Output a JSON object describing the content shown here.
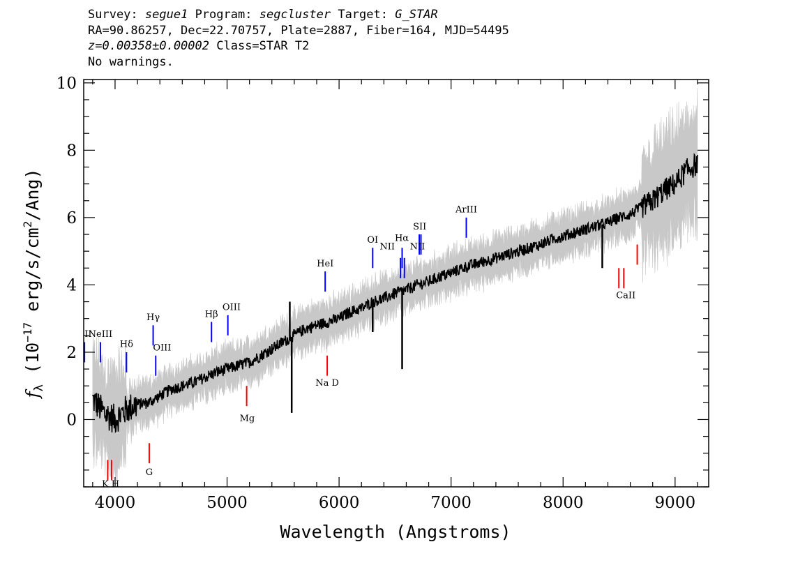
{
  "header": {
    "survey_label": "Survey:",
    "survey": "segue1",
    "program_label": "Program:",
    "program": "segcluster",
    "target_label": "Target:",
    "target": "G_STAR",
    "line2": "RA=90.86257, Dec=22.70757, Plate=2887, Fiber=164, MJD=54495",
    "redshift": "z=0.00358±0.00002",
    "class": "Class=STAR T2",
    "warnings": "No warnings."
  },
  "colors": {
    "flux": "#000000",
    "error": "#c8c8c8",
    "emission": "#0000ff",
    "absorption": "#ff0000",
    "sky": "#000000"
  },
  "chart_data": {
    "type": "line",
    "xlabel": "Wavelength (Angstroms)",
    "ylabel_parts": [
      "f",
      "λ",
      " (10",
      "−17",
      " erg/s/cm",
      "2",
      "/Ang)"
    ],
    "xlim": [
      3720,
      9300
    ],
    "ylim": [
      -2,
      10.1
    ],
    "x_ticks": [
      4000,
      5000,
      6000,
      7000,
      8000,
      9000
    ],
    "x_tick_labels": [
      "4000",
      "5000",
      "6000",
      "7000",
      "8000",
      "9000"
    ],
    "x_minor_step": 200,
    "y_ticks": [
      0,
      2,
      4,
      6,
      8,
      10
    ],
    "y_tick_labels": [
      "0",
      "2",
      "4",
      "6",
      "8",
      "10"
    ],
    "y_minor_step": 0.5,
    "series": [
      {
        "name": "flux",
        "x": [
          3800,
          3900,
          4000,
          4100,
          4200,
          4300,
          4400,
          4500,
          4600,
          4700,
          4800,
          4900,
          5000,
          5100,
          5200,
          5300,
          5400,
          5500,
          5600,
          5700,
          5800,
          5900,
          6000,
          6100,
          6200,
          6300,
          6400,
          6500,
          6600,
          6700,
          6800,
          6900,
          7000,
          7100,
          7200,
          7300,
          7400,
          7500,
          7600,
          7700,
          7800,
          7900,
          8000,
          8100,
          8200,
          8300,
          8400,
          8500,
          8600,
          8700,
          8800,
          8900,
          9000,
          9100,
          9200
        ],
        "y": [
          0.6,
          0.2,
          0.0,
          0.3,
          0.45,
          0.5,
          0.7,
          0.9,
          1.0,
          1.1,
          1.25,
          1.4,
          1.5,
          1.6,
          1.7,
          1.9,
          2.1,
          2.3,
          2.5,
          2.7,
          2.8,
          2.9,
          3.0,
          3.2,
          3.3,
          3.5,
          3.6,
          3.75,
          3.85,
          4.0,
          4.1,
          4.25,
          4.35,
          4.5,
          4.6,
          4.7,
          4.8,
          4.9,
          5.0,
          5.1,
          5.2,
          5.35,
          5.45,
          5.55,
          5.65,
          5.75,
          5.85,
          6.0,
          6.1,
          6.3,
          6.5,
          6.8,
          7.0,
          7.4,
          7.6
        ]
      }
    ],
    "spikes": [
      {
        "x": 5577,
        "y": 0.2
      },
      {
        "x": 5560,
        "y": 3.5
      },
      {
        "x": 6563,
        "y": 1.5
      },
      {
        "x": 6300,
        "y": 2.6
      },
      {
        "x": 8350,
        "y": 4.5
      }
    ],
    "lines": [
      {
        "label": "OII",
        "x": 3727,
        "top": 2.3,
        "bottom": 1.7,
        "color": "emission"
      },
      {
        "label": "NeIII",
        "x": 3869,
        "top": 2.3,
        "bottom": 1.7,
        "color": "emission"
      },
      {
        "label": "Hδ",
        "x": 4102,
        "top": 2.0,
        "bottom": 1.4,
        "color": "emission"
      },
      {
        "label": "Hγ",
        "x": 4340,
        "top": 2.8,
        "bottom": 2.2,
        "color": "emission"
      },
      {
        "label": "OIII",
        "x": 4363,
        "top": 1.9,
        "bottom": 1.3,
        "color": "emission"
      },
      {
        "label": "Hβ",
        "x": 4861,
        "top": 2.9,
        "bottom": 2.3,
        "color": "emission"
      },
      {
        "label": "OIII",
        "x": 5007,
        "top": 3.1,
        "bottom": 2.5,
        "color": "emission"
      },
      {
        "label": "HeI",
        "x": 5876,
        "top": 4.4,
        "bottom": 3.8,
        "color": "emission"
      },
      {
        "label": "OI",
        "x": 6300,
        "top": 5.1,
        "bottom": 4.5,
        "color": "emission"
      },
      {
        "label": "NII",
        "x": 6548,
        "top": 4.8,
        "bottom": 4.2,
        "color": "emission"
      },
      {
        "label": "Hα",
        "x": 6563,
        "top": 5.1,
        "bottom": 4.5,
        "color": "emission"
      },
      {
        "label": "NII",
        "x": 6583,
        "top": 4.8,
        "bottom": 4.2,
        "color": "emission"
      },
      {
        "label": "SII",
        "x": 6716,
        "top": 5.5,
        "bottom": 4.9,
        "color": "emission"
      },
      {
        "label": "SII",
        "x": 6731,
        "top": 5.5,
        "bottom": 4.9,
        "color": "emission"
      },
      {
        "label": "ArIII",
        "x": 7136,
        "top": 6.0,
        "bottom": 5.4,
        "color": "emission"
      },
      {
        "label": "K",
        "x": 3934,
        "top": -1.2,
        "bottom": -1.8,
        "color": "absorption"
      },
      {
        "label": "H",
        "x": 3969,
        "top": -1.2,
        "bottom": -1.8,
        "color": "absorption"
      },
      {
        "label": "G",
        "x": 4305,
        "top": -0.7,
        "bottom": -1.3,
        "color": "absorption"
      },
      {
        "label": "Mg",
        "x": 5175,
        "top": 1.0,
        "bottom": 0.4,
        "color": "absorption"
      },
      {
        "label": "Na D",
        "x": 5894,
        "top": 1.9,
        "bottom": 1.3,
        "color": "absorption"
      },
      {
        "label": "CaII",
        "x": 8498,
        "top": 4.5,
        "bottom": 3.9,
        "color": "absorption"
      },
      {
        "label": "CaII",
        "x": 8542,
        "top": 4.5,
        "bottom": 3.9,
        "color": "absorption"
      },
      {
        "label": "CaII",
        "x": 8662,
        "top": 5.2,
        "bottom": 4.6,
        "color": "absorption"
      }
    ],
    "line_labels": [
      {
        "text": "OII",
        "x": 3727,
        "y": 2.45
      },
      {
        "text": "NeIII",
        "x": 3869,
        "y": 2.45
      },
      {
        "text": "Hδ",
        "x": 4102,
        "y": 2.15
      },
      {
        "text": "Hγ",
        "x": 4340,
        "y": 2.95
      },
      {
        "text": "OIII",
        "x": 4420,
        "y": 2.05
      },
      {
        "text": "Hβ",
        "x": 4861,
        "y": 3.05
      },
      {
        "text": "OIII",
        "x": 5040,
        "y": 3.25
      },
      {
        "text": "HeI",
        "x": 5876,
        "y": 4.55
      },
      {
        "text": "OI",
        "x": 6300,
        "y": 5.25
      },
      {
        "text": "NII",
        "x": 6430,
        "y": 5.05
      },
      {
        "text": "Hα",
        "x": 6560,
        "y": 5.3
      },
      {
        "text": "NII",
        "x": 6700,
        "y": 5.05
      },
      {
        "text": "SII",
        "x": 6720,
        "y": 5.65
      },
      {
        "text": "ArIII",
        "x": 7136,
        "y": 6.15
      },
      {
        "text": "K H",
        "x": 3960,
        "y": -2.0
      },
      {
        "text": "G",
        "x": 4305,
        "y": -1.65
      },
      {
        "text": "Mg",
        "x": 5180,
        "y": -0.05
      },
      {
        "text": "Na  D",
        "x": 5894,
        "y": 1.0
      },
      {
        "text": "CaII",
        "x": 8560,
        "y": 3.6
      }
    ]
  }
}
